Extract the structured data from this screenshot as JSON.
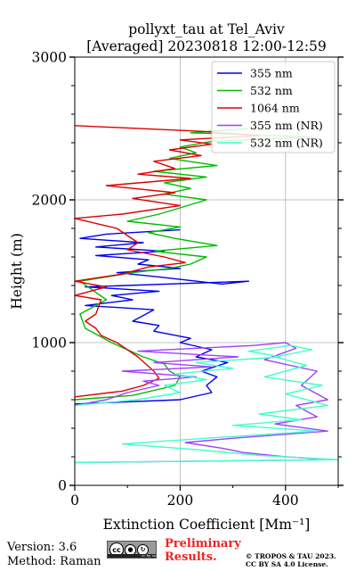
{
  "chart_data": {
    "type": "line",
    "title": "pollyxt_tau at Tel_Aviv",
    "subtitle": "[Averaged] 20230818 12:00-12:59",
    "xlabel": "Extinction Coefficient [Mm⁻¹]",
    "ylabel": "Height (m)",
    "xlim": [
      0,
      500
    ],
    "ylim": [
      0,
      3000
    ],
    "xticks": [
      0,
      200,
      400
    ],
    "yticks": [
      0,
      1000,
      2000,
      3000
    ],
    "grid": true,
    "legend_position": "top-right",
    "series": [
      {
        "name": "355 nm",
        "color": "#0000ee",
        "points": [
          [
            0,
            570
          ],
          [
            200,
            600
          ],
          [
            260,
            650
          ],
          [
            250,
            700
          ],
          [
            270,
            760
          ],
          [
            240,
            800
          ],
          [
            290,
            860
          ],
          [
            230,
            900
          ],
          [
            260,
            950
          ],
          [
            200,
            1000
          ],
          [
            220,
            1030
          ],
          [
            150,
            1080
          ],
          [
            160,
            1120
          ],
          [
            110,
            1150
          ],
          [
            130,
            1190
          ],
          [
            150,
            1230
          ],
          [
            20,
            1260
          ],
          [
            110,
            1300
          ],
          [
            70,
            1330
          ],
          [
            160,
            1360
          ],
          [
            20,
            1390
          ],
          [
            330,
            1430
          ],
          [
            280,
            1410
          ],
          [
            160,
            1460
          ],
          [
            80,
            1490
          ],
          [
            200,
            1520
          ],
          [
            120,
            1550
          ],
          [
            140,
            1580
          ],
          [
            40,
            1610
          ],
          [
            170,
            1640
          ],
          [
            40,
            1670
          ],
          [
            130,
            1700
          ],
          [
            10,
            1730
          ],
          [
            60,
            1760
          ],
          [
            200,
            1790
          ]
        ]
      },
      {
        "name": "532 nm",
        "color": "#00bb00",
        "points": [
          [
            0,
            600
          ],
          [
            110,
            630
          ],
          [
            190,
            700
          ],
          [
            200,
            760
          ],
          [
            180,
            800
          ],
          [
            170,
            850
          ],
          [
            130,
            900
          ],
          [
            70,
            1000
          ],
          [
            20,
            1100
          ],
          [
            10,
            1200
          ],
          [
            60,
            1300
          ],
          [
            10,
            1430
          ],
          [
            110,
            1490
          ],
          [
            180,
            1520
          ],
          [
            220,
            1550
          ],
          [
            250,
            1600
          ],
          [
            150,
            1640
          ],
          [
            270,
            1680
          ],
          [
            190,
            1730
          ],
          [
            140,
            1770
          ],
          [
            200,
            1810
          ],
          [
            100,
            1850
          ],
          [
            160,
            1900
          ],
          [
            250,
            2000
          ],
          [
            170,
            2040
          ],
          [
            220,
            2080
          ],
          [
            170,
            2120
          ],
          [
            250,
            2160
          ],
          [
            150,
            2200
          ],
          [
            270,
            2240
          ],
          [
            180,
            2290
          ],
          [
            230,
            2330
          ],
          [
            200,
            2370
          ],
          [
            260,
            2410
          ],
          [
            450,
            2440
          ],
          [
            220,
            2470
          ],
          [
            330,
            2500
          ]
        ]
      },
      {
        "name": "1064 nm",
        "color": "#dd0000",
        "points": [
          [
            0,
            620
          ],
          [
            90,
            660
          ],
          [
            130,
            700
          ],
          [
            160,
            750
          ],
          [
            150,
            800
          ],
          [
            120,
            900
          ],
          [
            80,
            1000
          ],
          [
            50,
            1050
          ],
          [
            40,
            1100
          ],
          [
            20,
            1150
          ],
          [
            40,
            1200
          ],
          [
            50,
            1300
          ],
          [
            0,
            1330
          ],
          [
            60,
            1390
          ],
          [
            0,
            1430
          ],
          [
            90,
            1480
          ],
          [
            140,
            1530
          ],
          [
            210,
            1560
          ],
          [
            170,
            1600
          ],
          [
            100,
            1650
          ],
          [
            120,
            1700
          ],
          [
            80,
            1800
          ],
          [
            0,
            1870
          ],
          [
            90,
            1900
          ],
          [
            200,
            1960
          ],
          [
            110,
            2010
          ],
          [
            190,
            2050
          ],
          [
            60,
            2100
          ],
          [
            220,
            2150
          ],
          [
            120,
            2180
          ],
          [
            190,
            2220
          ],
          [
            150,
            2270
          ],
          [
            240,
            2310
          ],
          [
            180,
            2350
          ],
          [
            260,
            2390
          ],
          [
            200,
            2420
          ],
          [
            350,
            2450
          ],
          [
            240,
            2480
          ],
          [
            0,
            2520
          ]
        ]
      },
      {
        "name": "355 nm (NR)",
        "color": "#a040ff",
        "points": [
          [
            0,
            560
          ],
          [
            60,
            600
          ],
          [
            100,
            650
          ],
          [
            160,
            700
          ],
          [
            130,
            730
          ],
          [
            230,
            760
          ],
          [
            90,
            800
          ],
          [
            260,
            830
          ],
          [
            150,
            860
          ],
          [
            310,
            900
          ],
          [
            120,
            940
          ],
          [
            340,
            980
          ],
          [
            400,
            1000
          ],
          [
            420,
            960
          ],
          [
            360,
            880
          ],
          [
            460,
            800
          ],
          [
            430,
            700
          ],
          [
            480,
            600
          ],
          [
            420,
            560
          ],
          [
            460,
            480
          ],
          [
            380,
            430
          ],
          [
            480,
            380
          ],
          [
            300,
            330
          ],
          [
            210,
            300
          ],
          [
            280,
            260
          ],
          [
            320,
            230
          ],
          [
            400,
            200
          ],
          [
            490,
            180
          ],
          [
            0,
            160
          ]
        ]
      },
      {
        "name": "532 nm (NR)",
        "color": "#40ffcc",
        "points": [
          [
            0,
            560
          ],
          [
            120,
            600
          ],
          [
            200,
            650
          ],
          [
            170,
            700
          ],
          [
            250,
            740
          ],
          [
            190,
            780
          ],
          [
            300,
            820
          ],
          [
            230,
            860
          ],
          [
            390,
            900
          ],
          [
            330,
            940
          ],
          [
            410,
            980
          ],
          [
            450,
            950
          ],
          [
            380,
            900
          ],
          [
            440,
            840
          ],
          [
            360,
            760
          ],
          [
            470,
            700
          ],
          [
            400,
            640
          ],
          [
            480,
            560
          ],
          [
            350,
            500
          ],
          [
            430,
            460
          ],
          [
            300,
            420
          ],
          [
            460,
            380
          ],
          [
            250,
            330
          ],
          [
            90,
            290
          ],
          [
            230,
            250
          ],
          [
            350,
            210
          ],
          [
            500,
            180
          ],
          [
            0,
            160
          ]
        ]
      }
    ]
  },
  "footer": {
    "version": "Version: 3.6",
    "method": "Method: Raman",
    "preliminary_line1": "Preliminary",
    "preliminary_line2": "Results.",
    "copyright_line1": "© TROPOS & TAU 2023.",
    "copyright_line2": "CC BY SA 4.0 License.",
    "license_badge_text": "cc by sa"
  }
}
